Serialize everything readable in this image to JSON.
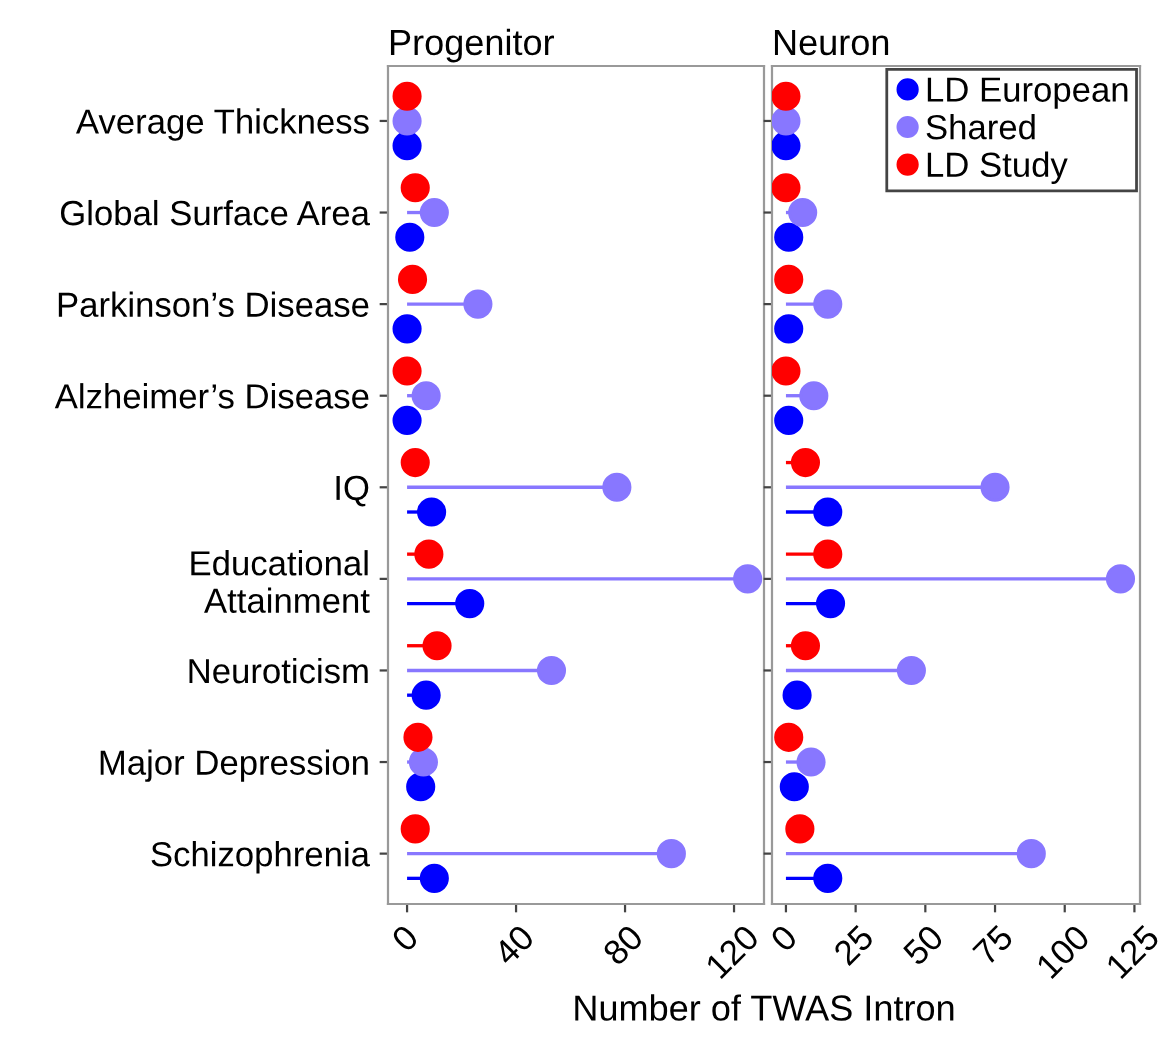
{
  "chart_data": [
    {
      "type": "lollipop",
      "title": "Progenitor",
      "orientation": "horizontal",
      "categories": [
        "Average Thickness",
        "Global Surface Area",
        "Parkinson’s Disease",
        "Alzheimer’s Disease",
        "IQ",
        "Educational\nAttainment",
        "Neuroticism",
        "Major Depression",
        "Schizophrenia"
      ],
      "series": [
        {
          "color": "#0000ff",
          "values": [
            0,
            1,
            0,
            0,
            9,
            23,
            7,
            5,
            10
          ]
        },
        {
          "color": "#8877ff",
          "values": [
            0,
            10,
            26,
            7,
            77,
            125,
            53,
            6,
            97
          ]
        },
        {
          "color": "#ff0000",
          "values": [
            0,
            3,
            2,
            0,
            3,
            8,
            11,
            4,
            3
          ]
        }
      ],
      "xlim": [
        -7,
        131
      ],
      "xticks": [
        0,
        40,
        80,
        120
      ],
      "legend": false,
      "marker": "circle"
    },
    {
      "type": "lollipop",
      "title": "Neuron",
      "orientation": "horizontal",
      "xlabel": "Number of TWAS Intron",
      "categories": [
        null,
        null,
        null,
        null,
        null,
        null,
        null,
        null,
        null
      ],
      "series": [
        {
          "name": "LD European",
          "color": "#0000ff",
          "values": [
            0,
            1,
            1,
            1,
            15,
            16,
            4,
            3,
            15
          ]
        },
        {
          "name": "Shared",
          "color": "#8877ff",
          "values": [
            0,
            6,
            15,
            10,
            75,
            120,
            45,
            9,
            88
          ]
        },
        {
          "name": "LD Study",
          "color": "#ff0000",
          "values": [
            0,
            0,
            1,
            0,
            7,
            15,
            7,
            1,
            5
          ]
        }
      ],
      "xlim": [
        -5,
        127
      ],
      "xticks": [
        0,
        25,
        50,
        75,
        100,
        125
      ],
      "legend": "top right",
      "tick_labels": "x",
      "marker": "circle"
    }
  ]
}
